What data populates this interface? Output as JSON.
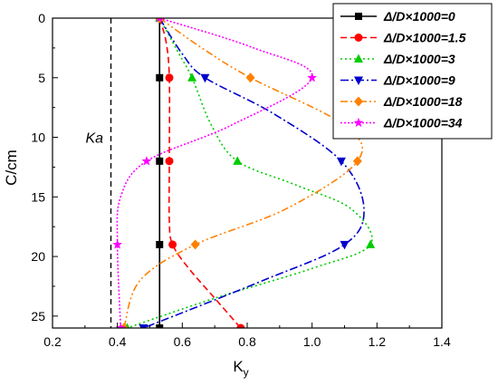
{
  "chart_data": {
    "type": "line",
    "xlabel": "K",
    "xlabel_sub": "y",
    "ylabel": "C/cm",
    "xlim": [
      0.2,
      1.4
    ],
    "ylim": [
      0,
      26
    ],
    "y_inverted": true,
    "xticks": [
      0.2,
      0.4,
      0.6,
      0.8,
      1.0,
      1.2,
      1.4
    ],
    "xtick_labels": [
      "0.2",
      "0.4",
      "0.6",
      "0.8",
      "1.0",
      "1.2",
      "1.4"
    ],
    "yticks": [
      0,
      5,
      10,
      15,
      20,
      25
    ],
    "ytick_labels": [
      "0",
      "5",
      "10",
      "15",
      "20",
      "25"
    ],
    "grid": false,
    "legend_position": "top-right",
    "annotation": {
      "text": "Ka",
      "x": 0.38
    },
    "series": [
      {
        "name": "Δ/D×1000=0",
        "color": "#000000",
        "dash": "solid",
        "marker": "square",
        "marker_points": [
          [
            0.53,
            0
          ],
          [
            0.53,
            5
          ],
          [
            0.53,
            12
          ],
          [
            0.53,
            19
          ],
          [
            0.53,
            26
          ]
        ],
        "curve": [
          [
            0.53,
            0
          ],
          [
            0.53,
            5
          ],
          [
            0.53,
            12
          ],
          [
            0.53,
            19
          ],
          [
            0.53,
            26
          ]
        ]
      },
      {
        "name": "Δ/D×1000=1.5",
        "color": "#ff0000",
        "dash": "dashed",
        "marker": "circle",
        "marker_points": [
          [
            0.53,
            0
          ],
          [
            0.56,
            5
          ],
          [
            0.56,
            12
          ],
          [
            0.57,
            19
          ],
          [
            0.78,
            26
          ]
        ],
        "curve": [
          [
            0.53,
            0
          ],
          [
            0.55,
            2
          ],
          [
            0.56,
            5
          ],
          [
            0.56,
            12
          ],
          [
            0.56,
            17
          ],
          [
            0.57,
            19
          ],
          [
            0.62,
            21
          ],
          [
            0.7,
            23.5
          ],
          [
            0.78,
            26
          ]
        ]
      },
      {
        "name": "Δ/D×1000=3",
        "color": "#00cc00",
        "dash": "dotted",
        "marker": "triangle-up",
        "marker_points": [
          [
            0.53,
            0
          ],
          [
            0.63,
            5
          ],
          [
            0.77,
            12
          ],
          [
            1.18,
            19
          ],
          [
            0.43,
            26
          ]
        ],
        "curve": [
          [
            0.53,
            0
          ],
          [
            0.59,
            3
          ],
          [
            0.63,
            5
          ],
          [
            0.69,
            9
          ],
          [
            0.77,
            12
          ],
          [
            0.95,
            14
          ],
          [
            1.12,
            16
          ],
          [
            1.18,
            19
          ],
          [
            1.0,
            21
          ],
          [
            0.7,
            23.5
          ],
          [
            0.43,
            26
          ]
        ]
      },
      {
        "name": "Δ/D×1000=9",
        "color": "#0000cc",
        "dash": "dashdot",
        "marker": "triangle-down",
        "marker_points": [
          [
            0.53,
            0
          ],
          [
            0.67,
            5
          ],
          [
            1.09,
            12
          ],
          [
            1.1,
            19
          ],
          [
            0.48,
            26
          ]
        ],
        "curve": [
          [
            0.53,
            0
          ],
          [
            0.6,
            3
          ],
          [
            0.67,
            5
          ],
          [
            0.88,
            8
          ],
          [
            1.09,
            12
          ],
          [
            1.16,
            16
          ],
          [
            1.1,
            19
          ],
          [
            0.85,
            22
          ],
          [
            0.48,
            26
          ]
        ]
      },
      {
        "name": "Δ/D×1000=18",
        "color": "#ff8000",
        "dash": "dashdotdot",
        "marker": "diamond",
        "marker_points": [
          [
            0.53,
            0
          ],
          [
            0.81,
            5
          ],
          [
            1.14,
            12
          ],
          [
            0.64,
            19
          ],
          [
            0.42,
            26
          ]
        ],
        "curve": [
          [
            0.53,
            0
          ],
          [
            0.66,
            2.5
          ],
          [
            0.81,
            5
          ],
          [
            1.1,
            9
          ],
          [
            1.14,
            12
          ],
          [
            0.92,
            16
          ],
          [
            0.64,
            19
          ],
          [
            0.47,
            22
          ],
          [
            0.42,
            26
          ]
        ]
      },
      {
        "name": "Δ/D×1000=34",
        "color": "#ff00ff",
        "dash": "dotted-dense",
        "marker": "star",
        "marker_points": [
          [
            0.53,
            0
          ],
          [
            1.0,
            5
          ],
          [
            0.49,
            12
          ],
          [
            0.4,
            19
          ],
          [
            0.41,
            26
          ]
        ],
        "curve": [
          [
            0.53,
            0
          ],
          [
            0.82,
            2.5
          ],
          [
            1.0,
            5
          ],
          [
            0.75,
            9
          ],
          [
            0.49,
            12
          ],
          [
            0.41,
            15
          ],
          [
            0.4,
            19
          ],
          [
            0.41,
            26
          ]
        ]
      }
    ]
  }
}
